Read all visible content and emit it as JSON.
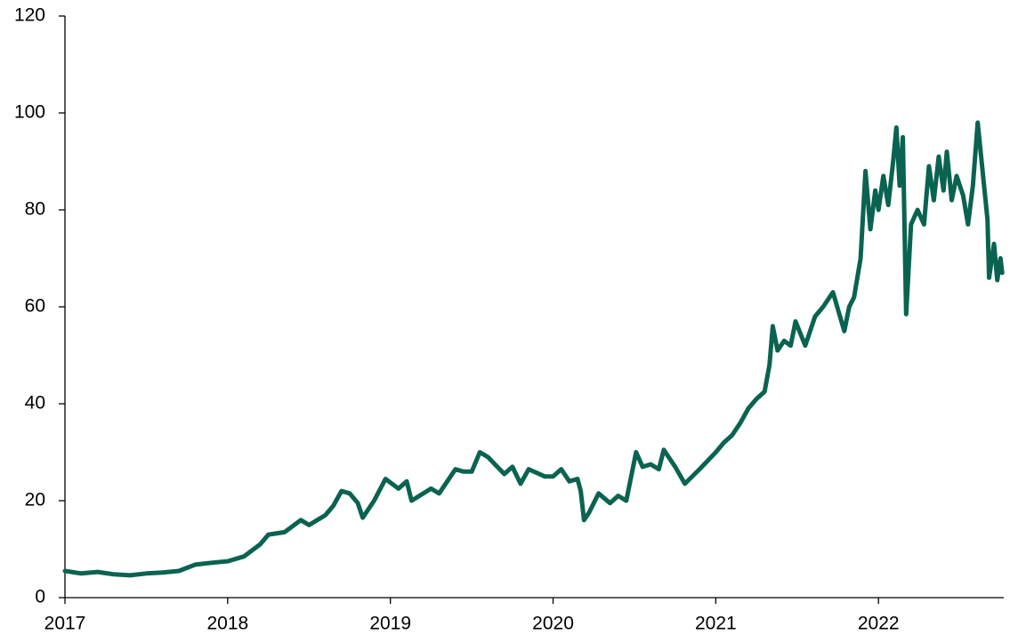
{
  "chart_data": {
    "type": "line",
    "color": "#0a6350",
    "x": [
      2017.0,
      2017.1,
      2017.2,
      2017.3,
      2017.4,
      2017.5,
      2017.6,
      2017.7,
      2017.8,
      2017.9,
      2018.0,
      2018.1,
      2018.2,
      2018.25,
      2018.35,
      2018.45,
      2018.5,
      2018.6,
      2018.65,
      2018.7,
      2018.75,
      2018.8,
      2018.83,
      2018.9,
      2018.97,
      2019.05,
      2019.1,
      2019.13,
      2019.25,
      2019.3,
      2019.4,
      2019.45,
      2019.5,
      2019.55,
      2019.6,
      2019.7,
      2019.75,
      2019.8,
      2019.85,
      2019.95,
      2020.0,
      2020.05,
      2020.1,
      2020.15,
      2020.17,
      2020.19,
      2020.22,
      2020.28,
      2020.35,
      2020.4,
      2020.45,
      2020.51,
      2020.55,
      2020.6,
      2020.65,
      2020.68,
      2020.75,
      2020.81,
      2020.9,
      2021.0,
      2021.05,
      2021.1,
      2021.15,
      2021.2,
      2021.25,
      2021.3,
      2021.33,
      2021.35,
      2021.38,
      2021.42,
      2021.46,
      2021.49,
      2021.55,
      2021.61,
      2021.66,
      2021.72,
      2021.79,
      2021.82,
      2021.85,
      2021.89,
      2021.92,
      2021.95,
      2021.98,
      2022.0,
      2022.03,
      2022.06,
      2022.09,
      2022.11,
      2022.13,
      2022.15,
      2022.17,
      2022.2,
      2022.24,
      2022.28,
      2022.31,
      2022.34,
      2022.37,
      2022.4,
      2022.42,
      2022.45,
      2022.48,
      2022.52,
      2022.55,
      2022.58,
      2022.61,
      2022.64,
      2022.67,
      2022.68,
      2022.71,
      2022.73,
      2022.75,
      2022.76
    ],
    "values": [
      5.5,
      5,
      5.3,
      4.8,
      4.6,
      5,
      5.2,
      5.5,
      6.8,
      7.2,
      7.5,
      8.5,
      11,
      13,
      13.5,
      16,
      15,
      17,
      19,
      22,
      21.5,
      19.5,
      16.5,
      20,
      24.5,
      22.5,
      24,
      20,
      22.5,
      21.5,
      26.5,
      26,
      26,
      30,
      29,
      25.5,
      27,
      23.5,
      26.5,
      25,
      25,
      26.5,
      24,
      24.5,
      22,
      16,
      17.5,
      21.5,
      19.5,
      21,
      20,
      30,
      27,
      27.5,
      26.5,
      30.5,
      27,
      23.5,
      26.5,
      30,
      32,
      33.5,
      36,
      39,
      41,
      42.5,
      48,
      56,
      51,
      53,
      52,
      57,
      52,
      58,
      60,
      63,
      55,
      60,
      62,
      70,
      88,
      76,
      84,
      80,
      87,
      81,
      90,
      97,
      85,
      95,
      58.5,
      77,
      80,
      77,
      89,
      82,
      91,
      84,
      92,
      82,
      87,
      83,
      77,
      85,
      98,
      88,
      78,
      66,
      73,
      65.5,
      70,
      67
    ],
    "xlim": [
      2017,
      2022.77
    ],
    "xticks": [
      2017,
      2018,
      2019,
      2020,
      2021,
      2022
    ],
    "ylim": [
      0,
      120
    ],
    "yticks": [
      0,
      20,
      40,
      60,
      80,
      100,
      120
    ]
  }
}
